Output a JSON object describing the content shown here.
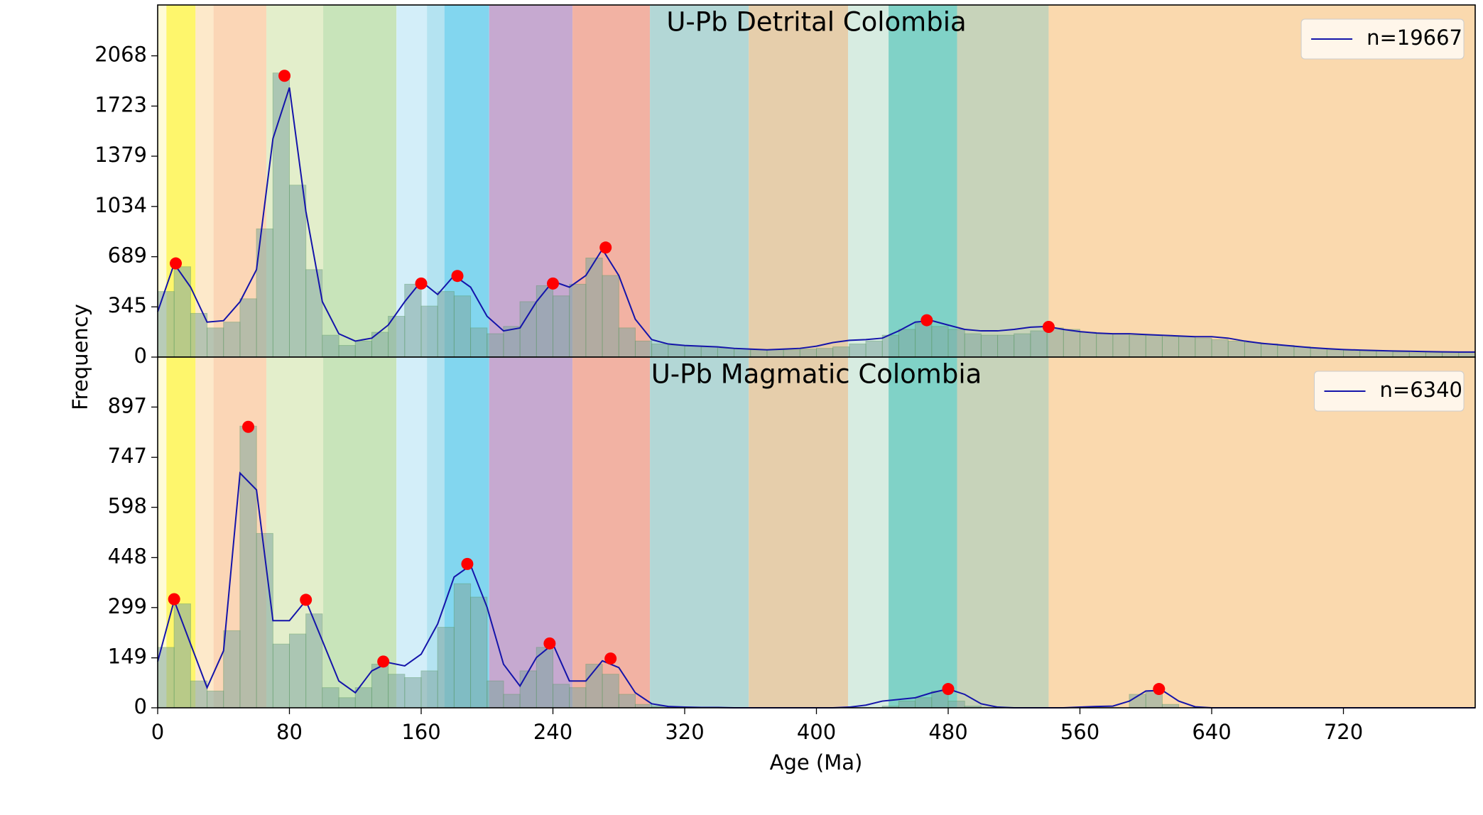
{
  "time_scale": [
    {
      "start": 0,
      "end": 5.3,
      "color": "#fffbd6"
    },
    {
      "start": 5.3,
      "end": 23,
      "color": "#fef66c"
    },
    {
      "start": 23,
      "end": 33.9,
      "color": "#fde9ca"
    },
    {
      "start": 33.9,
      "end": 66,
      "color": "#fbd6b6"
    },
    {
      "start": 66,
      "end": 100.5,
      "color": "#e3eecb"
    },
    {
      "start": 100.5,
      "end": 145,
      "color": "#c8e4ba"
    },
    {
      "start": 145,
      "end": 163.5,
      "color": "#d3eef9"
    },
    {
      "start": 163.5,
      "end": 174.1,
      "color": "#b4e3f1"
    },
    {
      "start": 174.1,
      "end": 201.3,
      "color": "#82d6ef"
    },
    {
      "start": 201.3,
      "end": 251.9,
      "color": "#c6a9d0"
    },
    {
      "start": 251.9,
      "end": 298.9,
      "color": "#f2b2a3"
    },
    {
      "start": 298.9,
      "end": 358.9,
      "color": "#b3d7d6"
    },
    {
      "start": 358.9,
      "end": 419.2,
      "color": "#e6ceab"
    },
    {
      "start": 419.2,
      "end": 443.8,
      "color": "#d7ece1"
    },
    {
      "start": 443.8,
      "end": 485.4,
      "color": "#80d2c7"
    },
    {
      "start": 485.4,
      "end": 541,
      "color": "#c7d3ba"
    },
    {
      "start": 541,
      "end": 800,
      "color": "#fad9ae"
    }
  ],
  "ylabel": "Frequency",
  "xlabel": "Age (Ma)",
  "chart_data": [
    {
      "type": "histogram",
      "title": "U-Pb Detrital Colombia",
      "bar_color": "#7fa7a0",
      "bar_edge": "#5f9a6f",
      "bins": [
        0,
        10,
        20,
        30,
        40,
        50,
        60,
        70,
        80,
        90,
        100,
        110,
        120,
        130,
        140,
        150,
        160,
        170,
        180,
        190,
        200,
        210,
        220,
        230,
        240,
        250,
        260,
        270,
        280,
        290,
        300,
        310,
        320,
        330,
        340,
        350,
        360,
        370,
        380,
        390,
        400,
        410,
        420,
        430,
        440,
        450,
        460,
        470,
        480,
        490,
        500,
        510,
        520,
        530,
        540,
        550,
        560,
        570,
        580,
        590,
        600,
        610,
        620,
        630,
        640,
        650,
        660,
        670,
        680,
        690,
        700,
        710,
        720,
        730,
        740,
        750,
        760,
        770,
        780,
        790,
        800
      ],
      "counts": [
        450,
        620,
        300,
        200,
        240,
        400,
        880,
        1950,
        1180,
        600,
        150,
        80,
        110,
        170,
        280,
        500,
        350,
        450,
        420,
        200,
        160,
        210,
        380,
        490,
        420,
        500,
        680,
        560,
        200,
        110,
        90,
        80,
        75,
        70,
        60,
        55,
        50,
        50,
        50,
        55,
        60,
        70,
        90,
        110,
        150,
        190,
        230,
        210,
        190,
        160,
        150,
        150,
        160,
        180,
        200,
        190,
        170,
        160,
        160,
        150,
        150,
        140,
        140,
        130,
        120,
        110,
        100,
        90,
        80,
        70,
        60,
        50,
        45,
        40,
        40,
        35,
        30,
        30,
        30,
        30
      ],
      "series": [
        {
          "name": "n=19667",
          "color": "#1414aa",
          "x": [
            0,
            10,
            20,
            30,
            40,
            50,
            60,
            70,
            80,
            90,
            100,
            110,
            120,
            130,
            140,
            150,
            160,
            170,
            180,
            190,
            200,
            210,
            220,
            230,
            240,
            250,
            260,
            270,
            280,
            290,
            300,
            310,
            320,
            330,
            340,
            350,
            360,
            370,
            380,
            390,
            400,
            410,
            420,
            430,
            440,
            450,
            460,
            470,
            480,
            490,
            500,
            510,
            520,
            530,
            540,
            550,
            560,
            570,
            580,
            590,
            600,
            610,
            620,
            630,
            640,
            650,
            660,
            670,
            680,
            690,
            700,
            710,
            720,
            730,
            740,
            750,
            760,
            770,
            780,
            790,
            800
          ],
          "values": [
            311,
            640,
            480,
            240,
            250,
            380,
            600,
            1500,
            1850,
            1000,
            380,
            160,
            110,
            130,
            220,
            380,
            520,
            430,
            560,
            480,
            280,
            180,
            200,
            380,
            520,
            480,
            560,
            740,
            560,
            260,
            120,
            90,
            80,
            75,
            70,
            60,
            55,
            50,
            55,
            60,
            75,
            100,
            115,
            120,
            130,
            180,
            240,
            250,
            220,
            190,
            180,
            180,
            190,
            205,
            210,
            190,
            175,
            165,
            160,
            160,
            155,
            150,
            145,
            140,
            140,
            130,
            110,
            95,
            85,
            75,
            65,
            58,
            52,
            48,
            45,
            42,
            40,
            38,
            36,
            35,
            35
          ]
        }
      ],
      "peaks": {
        "color": "#ff0000",
        "x": [
          11,
          77,
          160,
          182,
          240,
          272,
          467,
          541
        ],
        "values": [
          643,
          1931,
          505,
          557,
          505,
          752,
          253,
          207
        ]
      },
      "xlim": [
        0,
        800
      ],
      "ylim": [
        0,
        2417
      ],
      "yticks": [
        0,
        345,
        689,
        1034,
        1379,
        1723,
        2068
      ],
      "legend": "upper right"
    },
    {
      "type": "histogram",
      "title": "U-Pb Magmatic Colombia",
      "bar_color": "#7fa7a0",
      "bar_edge": "#5f9a6f",
      "bins": [
        0,
        10,
        20,
        30,
        40,
        50,
        60,
        70,
        80,
        90,
        100,
        110,
        120,
        130,
        140,
        150,
        160,
        170,
        180,
        190,
        200,
        210,
        220,
        230,
        240,
        250,
        260,
        270,
        280,
        290,
        300,
        310,
        320,
        330,
        340,
        350,
        360,
        370,
        380,
        390,
        400,
        410,
        420,
        430,
        440,
        450,
        460,
        470,
        480,
        490,
        500,
        510,
        520,
        530,
        540,
        550,
        560,
        570,
        580,
        590,
        600,
        610,
        620,
        630,
        640,
        650,
        660,
        670,
        680,
        690,
        700,
        710,
        720,
        730,
        740,
        750,
        760,
        770,
        780,
        790,
        800
      ],
      "counts": [
        180,
        310,
        80,
        50,
        230,
        840,
        520,
        190,
        220,
        280,
        60,
        30,
        60,
        130,
        100,
        90,
        110,
        240,
        370,
        330,
        80,
        40,
        110,
        180,
        70,
        60,
        130,
        100,
        40,
        10,
        5,
        0,
        0,
        0,
        0,
        0,
        0,
        0,
        0,
        0,
        0,
        0,
        0,
        0,
        5,
        20,
        30,
        50,
        20,
        5,
        0,
        0,
        0,
        0,
        0,
        0,
        0,
        0,
        0,
        40,
        50,
        10,
        0,
        0,
        0,
        0,
        0,
        0,
        0,
        0,
        0,
        0,
        0,
        0,
        0,
        0,
        0,
        0,
        0,
        0
      ],
      "series": [
        {
          "name": "n=6340",
          "color": "#1414aa",
          "x": [
            0,
            10,
            20,
            30,
            40,
            50,
            60,
            70,
            80,
            90,
            100,
            110,
            120,
            130,
            140,
            150,
            160,
            170,
            180,
            190,
            200,
            210,
            220,
            230,
            240,
            250,
            260,
            270,
            280,
            290,
            300,
            310,
            320,
            330,
            340,
            350,
            360,
            370,
            380,
            390,
            400,
            410,
            420,
            430,
            440,
            450,
            460,
            470,
            480,
            490,
            500,
            510,
            520,
            530,
            540,
            550,
            560,
            570,
            580,
            590,
            600,
            610,
            620,
            630,
            640,
            650,
            660,
            670,
            680,
            690,
            700,
            710,
            720,
            730,
            740,
            750,
            760,
            770,
            780,
            790,
            800
          ],
          "values": [
            138,
            320,
            190,
            60,
            170,
            700,
            650,
            260,
            260,
            320,
            200,
            80,
            45,
            110,
            135,
            125,
            160,
            250,
            390,
            425,
            300,
            130,
            65,
            150,
            190,
            80,
            80,
            140,
            120,
            45,
            12,
            4,
            2,
            1,
            1,
            0,
            0,
            0,
            0,
            0,
            0,
            0,
            2,
            8,
            20,
            25,
            30,
            45,
            56,
            40,
            12,
            2,
            0,
            0,
            0,
            0,
            2,
            4,
            5,
            20,
            50,
            52,
            20,
            3,
            0,
            0,
            0,
            0,
            0,
            0,
            0,
            0,
            0,
            0,
            0,
            0,
            0,
            0,
            0,
            0,
            0
          ]
        }
      ],
      "peaks": {
        "color": "#ff0000",
        "x": [
          10,
          55,
          90,
          137,
          188,
          238,
          275,
          480,
          608
        ],
        "values": [
          324,
          838,
          322,
          138,
          429,
          192,
          147,
          56,
          56
        ]
      },
      "xlim": [
        0,
        800
      ],
      "ylim": [
        0,
        1046
      ],
      "xticks": [
        0,
        80,
        160,
        240,
        320,
        400,
        480,
        560,
        640,
        720
      ],
      "yticks": [
        0,
        149,
        299,
        448,
        598,
        747,
        897
      ],
      "legend": "upper right"
    }
  ]
}
